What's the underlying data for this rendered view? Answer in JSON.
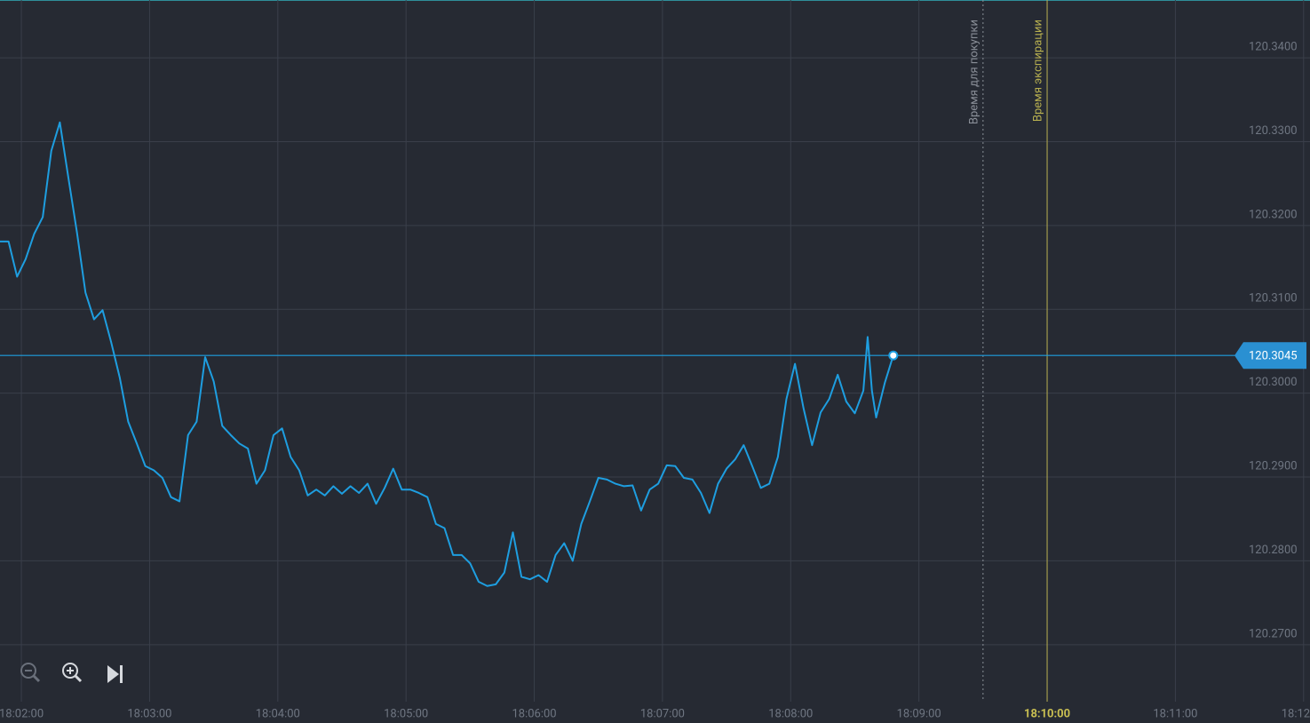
{
  "chart_data": {
    "type": "line",
    "color": "#1e9ee0",
    "x": [
      "18:01:50",
      "18:01:54",
      "18:01:58",
      "18:02:02",
      "18:02:06",
      "18:02:10",
      "18:02:14",
      "18:02:18",
      "18:02:22",
      "18:02:26",
      "18:02:30",
      "18:02:34",
      "18:02:38",
      "18:02:42",
      "18:02:46",
      "18:02:50",
      "18:02:54",
      "18:02:58",
      "18:03:02",
      "18:03:06",
      "18:03:10",
      "18:03:14",
      "18:03:18",
      "18:03:22",
      "18:03:26",
      "18:03:30",
      "18:03:34",
      "18:03:38",
      "18:03:42",
      "18:03:46",
      "18:03:50",
      "18:03:54",
      "18:03:58",
      "18:04:02",
      "18:04:06",
      "18:04:10",
      "18:04:14",
      "18:04:18",
      "18:04:22",
      "18:04:26",
      "18:04:30",
      "18:04:34",
      "18:04:38",
      "18:04:42",
      "18:04:46",
      "18:04:50",
      "18:04:54",
      "18:04:58",
      "18:05:02",
      "18:05:06",
      "18:05:10",
      "18:05:14",
      "18:05:18",
      "18:05:22",
      "18:05:26",
      "18:05:30",
      "18:05:34",
      "18:05:38",
      "18:05:42",
      "18:05:46",
      "18:05:50",
      "18:05:54",
      "18:05:58",
      "18:06:02",
      "18:06:06",
      "18:06:10",
      "18:06:14",
      "18:06:18",
      "18:06:22",
      "18:06:26",
      "18:06:30",
      "18:06:34",
      "18:06:38",
      "18:06:42",
      "18:06:46",
      "18:06:50",
      "18:06:54",
      "18:06:58",
      "18:07:02",
      "18:07:06",
      "18:07:10",
      "18:07:14",
      "18:07:18",
      "18:07:22",
      "18:07:26",
      "18:07:30",
      "18:07:34",
      "18:07:38",
      "18:07:42",
      "18:07:46",
      "18:07:50",
      "18:07:54",
      "18:07:58",
      "18:08:02",
      "18:08:06",
      "18:08:10",
      "18:08:14",
      "18:08:18",
      "18:08:22",
      "18:08:26",
      "18:08:30",
      "18:08:34",
      "18:08:36",
      "18:08:38",
      "18:08:40",
      "18:08:44",
      "18:08:48"
    ],
    "values": [
      120.3181,
      120.3181,
      120.3139,
      120.316,
      120.319,
      120.321,
      120.3289,
      120.3323,
      120.3257,
      120.3192,
      120.312,
      120.3088,
      120.3099,
      120.3061,
      120.3019,
      120.2966,
      120.294,
      120.2913,
      120.2908,
      120.2899,
      120.2876,
      120.2871,
      120.295,
      120.2966,
      120.3043,
      120.3014,
      120.2961,
      120.295,
      120.294,
      120.2934,
      120.2892,
      120.2908,
      120.295,
      120.2958,
      120.2924,
      120.2908,
      120.2878,
      120.2885,
      120.2878,
      120.2889,
      120.288,
      120.2889,
      120.2881,
      120.2892,
      120.2868,
      120.2887,
      120.291,
      120.2885,
      120.2885,
      120.2881,
      120.2876,
      120.2844,
      120.2839,
      120.2807,
      120.2807,
      120.2797,
      120.2775,
      120.277,
      120.2772,
      120.2786,
      120.2834,
      120.2781,
      120.2778,
      120.2783,
      120.2775,
      120.2807,
      120.2821,
      120.28,
      120.2844,
      120.2871,
      120.2899,
      120.2897,
      120.2892,
      120.2889,
      120.289,
      120.286,
      120.2885,
      120.2892,
      120.2914,
      120.2913,
      120.2899,
      120.2897,
      120.2881,
      120.2857,
      120.2892,
      120.291,
      120.2921,
      120.2938,
      120.2913,
      120.2887,
      120.2892,
      120.2924,
      120.2993,
      120.3035,
      120.2982,
      120.2938,
      120.2977,
      120.2993,
      120.3022,
      120.299,
      120.2976,
      120.3003,
      120.3067,
      120.3003,
      120.2971,
      120.3012,
      120.3045
    ],
    "current_price": 120.3045,
    "xlim": [
      "18:01:50",
      "18:12:03"
    ],
    "xticks": [
      "18:02:00",
      "18:03:00",
      "18:04:00",
      "18:05:00",
      "18:06:00",
      "18:07:00",
      "18:08:00",
      "18:09:00",
      "18:10:00",
      "18:11:00",
      "18:12:00"
    ],
    "ylim": [
      120.2632,
      120.3469
    ],
    "yticks": [
      {
        "value": 120.27,
        "label": "120.2700"
      },
      {
        "value": 120.28,
        "label": "120.2800"
      },
      {
        "value": 120.29,
        "label": "120.2900"
      },
      {
        "value": 120.3,
        "label": "120.3000"
      },
      {
        "value": 120.31,
        "label": "120.3100"
      },
      {
        "value": 120.32,
        "label": "120.3200"
      },
      {
        "value": 120.33,
        "label": "120.3300"
      },
      {
        "value": 120.34,
        "label": "120.3400"
      }
    ],
    "grid": true,
    "markers": [
      {
        "time": "18:09:30",
        "label": "Время для покупки",
        "color": "#8a8f98",
        "style": "dotted"
      },
      {
        "time": "18:10:00",
        "label": "Время экспирации",
        "color": "#b8b050",
        "style": "solid"
      }
    ]
  }
}
